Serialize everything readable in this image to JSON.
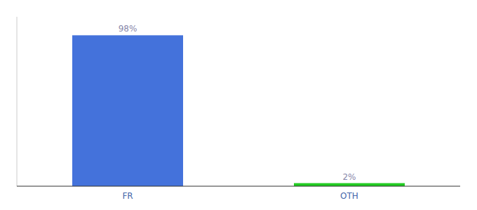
{
  "chart_data": {
    "type": "bar",
    "categories": [
      "FR",
      "OTH"
    ],
    "values": [
      98,
      2
    ],
    "value_labels": [
      "98%",
      "2%"
    ],
    "data_labels": true,
    "colors": [
      "#4472db",
      "#22cc22"
    ],
    "ylim": [
      0,
      110
    ],
    "grid": false,
    "tick_labels": "x"
  }
}
